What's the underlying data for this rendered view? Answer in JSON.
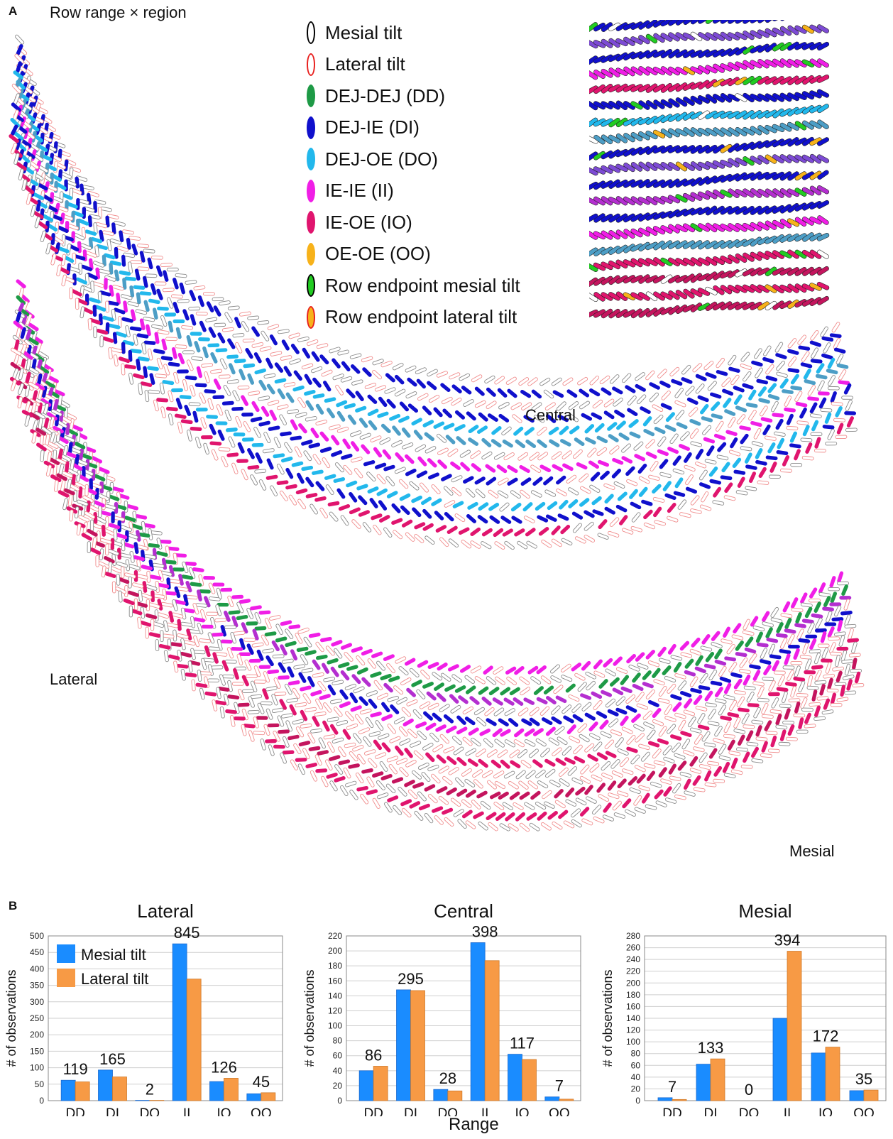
{
  "panel_a": {
    "letter": "A",
    "title": "Row range × region",
    "legend": [
      {
        "label": "Mesial tilt",
        "fill": "#ffffff",
        "stroke": "#000000"
      },
      {
        "label": "Lateral tilt",
        "fill": "#ffffff",
        "stroke": "#e8201e"
      },
      {
        "label": "DEJ-DEJ (DD)",
        "fill": "#1e9a46",
        "stroke": "#1e9a46"
      },
      {
        "label": "DEJ-IE (DI)",
        "fill": "#1010cc",
        "stroke": "#1010cc"
      },
      {
        "label": "DEJ-OE (DO)",
        "fill": "#22b8ec",
        "stroke": "#22b8ec"
      },
      {
        "label": "IE-IE (II)",
        "fill": "#f01ee6",
        "stroke": "#f01ee6"
      },
      {
        "label": "IE-OE (IO)",
        "fill": "#e0156e",
        "stroke": "#e0156e"
      },
      {
        "label": "OE-OE (OO)",
        "fill": "#f7b21a",
        "stroke": "#f7b21a"
      },
      {
        "label": "Row endpoint mesial tilt",
        "fill": "#22cc22",
        "stroke": "#000000"
      },
      {
        "label": "Row endpoint lateral tilt",
        "fill": "#f7b21a",
        "stroke": "#e8201e"
      }
    ],
    "region_labels": {
      "central": "Central",
      "lateral": "Lateral",
      "mesial": "Mesial"
    }
  },
  "panel_b": {
    "letter": "B",
    "x_axis_title": "Range"
  },
  "chart_data": [
    {
      "type": "bar",
      "title": "Lateral",
      "ylabel": "# of observations",
      "categories": [
        "DD",
        "DI",
        "DO",
        "II",
        "IO",
        "OO"
      ],
      "series": [
        {
          "name": "Mesial tilt",
          "color": "#1a8cff",
          "values": [
            62,
            93,
            1,
            476,
            58,
            21
          ]
        },
        {
          "name": "Lateral tilt",
          "color": "#f79a45",
          "values": [
            57,
            72,
            1,
            369,
            68,
            24
          ]
        }
      ],
      "totals": [
        "119",
        "165",
        "2",
        "845",
        "126",
        "45"
      ],
      "ylim": [
        0,
        500
      ],
      "yticks": [
        0,
        50,
        100,
        150,
        200,
        250,
        300,
        350,
        400,
        450,
        500
      ],
      "legend": "top-left",
      "grid": true
    },
    {
      "type": "bar",
      "title": "Central",
      "ylabel": "# of observations",
      "categories": [
        "DD",
        "DI",
        "DO",
        "II",
        "IO",
        "OO"
      ],
      "series": [
        {
          "name": "Mesial tilt",
          "color": "#1a8cff",
          "values": [
            40,
            148,
            15,
            211,
            62,
            5
          ]
        },
        {
          "name": "Lateral tilt",
          "color": "#f79a45",
          "values": [
            46,
            147,
            13,
            187,
            55,
            2
          ]
        }
      ],
      "totals": [
        "86",
        "295",
        "28",
        "398",
        "117",
        "7"
      ],
      "ylim": [
        0,
        220
      ],
      "yticks": [
        0,
        20,
        40,
        60,
        80,
        100,
        120,
        140,
        160,
        180,
        200,
        220
      ],
      "grid": true
    },
    {
      "type": "bar",
      "title": "Mesial",
      "ylabel": "# of observations",
      "categories": [
        "DD",
        "DI",
        "DO",
        "II",
        "IO",
        "OO"
      ],
      "series": [
        {
          "name": "Mesial tilt",
          "color": "#1a8cff",
          "values": [
            5,
            62,
            0,
            140,
            81,
            17
          ]
        },
        {
          "name": "Lateral tilt",
          "color": "#f79a45",
          "values": [
            2,
            71,
            0,
            254,
            91,
            18
          ]
        }
      ],
      "totals": [
        "7",
        "133",
        "0",
        "394",
        "172",
        "35"
      ],
      "ylim": [
        0,
        280
      ],
      "yticks": [
        0,
        20,
        40,
        60,
        80,
        100,
        120,
        140,
        160,
        180,
        200,
        220,
        240,
        260,
        280
      ],
      "grid": true
    }
  ]
}
